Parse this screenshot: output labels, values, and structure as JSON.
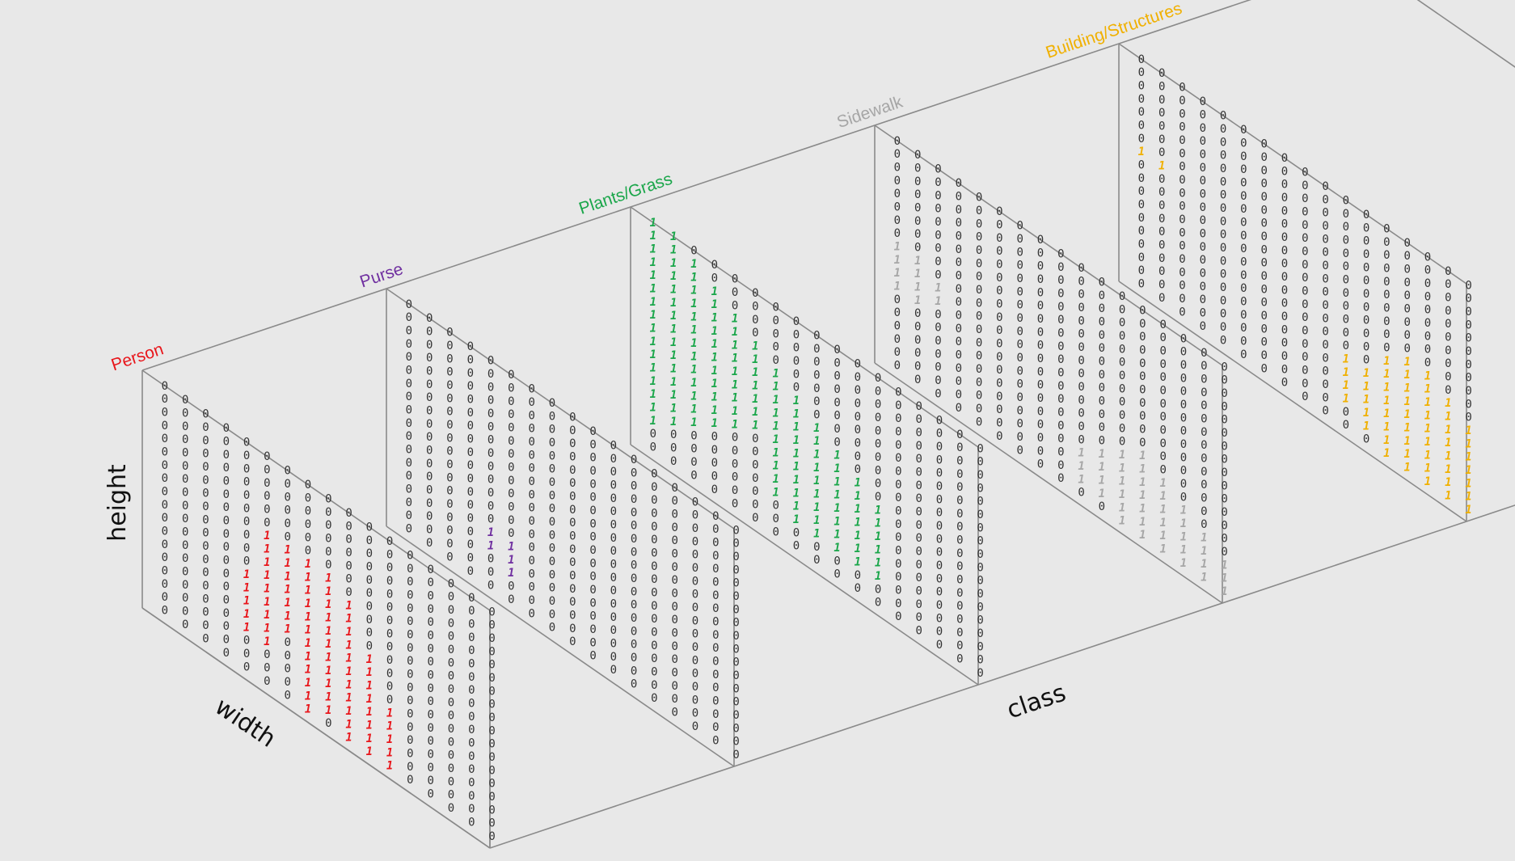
{
  "axes": {
    "height": "height",
    "width": "width",
    "class": "class"
  },
  "colors": {
    "background": "#e8e8e8",
    "frame": "#8a8a8a",
    "zero": "#333333"
  },
  "channels": [
    {
      "label": "Person",
      "color": "#e8161b",
      "mask": [
        "00000000000000000",
        "00000000000000000",
        "00000000000000000",
        "00000000000000000",
        "00000000000000000",
        "00000000000000000",
        "00000111100000000",
        "00000111110000000",
        "00000111110000000",
        "00000111110000000",
        "00001111111000000",
        "00001111111000000",
        "00001111111000000",
        "00001101111100000",
        "00001101111100000",
        "00000001111100000",
        "00000001111100000",
        "00000001011100000"
      ]
    },
    {
      "label": "Purse",
      "color": "#7030a0",
      "mask": [
        "00000000000000000",
        "00000000000000000",
        "00000000000000000",
        "00000000000000000",
        "00000000000000000",
        "00000000000000000",
        "00000000000000000",
        "00000000000000000",
        "00000000000000000",
        "00000000000000000",
        "00000000000000000",
        "00000000000000000",
        "00000000000000000",
        "00001100000000000",
        "00001100000000000",
        "00000100000000000",
        "00000000000000000",
        "00000000000000000"
      ]
    },
    {
      "label": "Plants/Grass",
      "color": "#1aa64a",
      "mask": [
        "11000000000000000",
        "11100000000000000",
        "11110000000000000",
        "11111000000000000",
        "11111100000000000",
        "11111110000000000",
        "11111111000000000",
        "11111111100000000",
        "11111111110000000",
        "11111111111000000",
        "11111111111100000",
        "11111011111100000",
        "11110011111100000",
        "11100011111100000",
        "11000011111100000",
        "10000001111100000",
        "00000000000000000",
        "00000000000000000"
      ]
    },
    {
      "label": "Sidewalk",
      "color": "#a6a6a6",
      "mask": [
        "00000000000000000",
        "00000000000000000",
        "00000000000000000",
        "00000000000000000",
        "00000000000000000",
        "00000000000000000",
        "00000000000000000",
        "00000000000000000",
        "11000000000000000",
        "11100000000000000",
        "11100000000000000",
        "11000000000010000",
        "00000000000111000",
        "00000000001111100",
        "00000000011111110",
        "00000000011111111",
        "00000000011111111",
        "00000000000111111"
      ]
    },
    {
      "label": "Building/Structures",
      "color": "#f0b000",
      "mask": [
        "00000000000000000",
        "00000000000000000",
        "00000000000000000",
        "00000000000000000",
        "00000000000000000",
        "00000000000000000",
        "00000000000000000",
        "11000000000000000",
        "00000000000000000",
        "00000000000001100",
        "00000000000011110",
        "00000000000011111",
        "00000000001111111",
        "00000000001111111",
        "00000000001111111",
        "00000000001111111",
        "00000000000111111",
        "00000000000011111"
      ]
    }
  ]
}
